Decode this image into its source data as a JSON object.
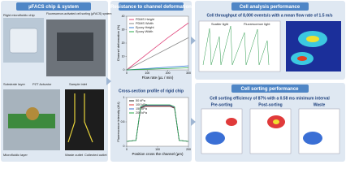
{
  "panels": [
    {
      "title": "µFACS chip & system",
      "labels": [
        "Rigid microfluidic chip",
        "Fluorescence-activated cell sorting (µFACS) system",
        "Substrate layer",
        "PZT Actuator",
        "Sample inlet",
        "Microfluidic layer",
        "Waste outlet",
        "Collected outlet"
      ]
    },
    {
      "title": "Resistance to channel deformation",
      "subtitle": "Cross-section profile of rigid chip"
    },
    {
      "title": "Cell analysis performance",
      "subtitle": "Cell throughput of 8,000 events/s with a mean flow rate of 1.5 m/s",
      "labels": [
        "Scatter light",
        "Fluorescence light"
      ]
    },
    {
      "title": "Cell sorting performance",
      "subtitle": "Cell sorting efficiency of 87% with a 0.58 ms minimum interval",
      "labels": [
        "Pre-sorting",
        "Post-sorting",
        "Waste"
      ]
    }
  ],
  "chart_data": [
    {
      "type": "line",
      "x_label": "Flow rate (µL / min)",
      "y_label": "Channel deformation (%)",
      "x": [
        0,
        100,
        200,
        300
      ],
      "xlim": [
        0,
        300
      ],
      "xticks": [
        0,
        100,
        200,
        300
      ],
      "ylim": [
        0,
        40
      ],
      "yticks": [
        0,
        10,
        20,
        30,
        40
      ],
      "series": [
        {
          "name": "PDMS Height",
          "color": "#e0457b",
          "values": [
            0,
            12,
            24,
            35
          ]
        },
        {
          "name": "PDMS Width",
          "color": "#8a8a8a",
          "values": [
            0,
            8,
            16,
            24
          ]
        },
        {
          "name": "Epoxy Height",
          "color": "#3a7fd5",
          "values": [
            0,
            1,
            2,
            3
          ]
        },
        {
          "name": "Epoxy Width",
          "color": "#2aa84a",
          "values": [
            0,
            0.5,
            1,
            1.5
          ]
        }
      ]
    },
    {
      "type": "line",
      "x_label": "Position cross the channel (µm)",
      "y_label": "Fluorescence intensity (AU)",
      "x": [
        0,
        30,
        45,
        60,
        140,
        155,
        170,
        200
      ],
      "xlim": [
        0,
        200
      ],
      "xticks": [
        0,
        100,
        200
      ],
      "ylim": [
        0,
        1
      ],
      "yticks": [
        0,
        0.5,
        1
      ],
      "series": [
        {
          "name": "50 kPa",
          "color": "#222222",
          "values": [
            0.1,
            0.12,
            0.78,
            0.82,
            0.82,
            0.78,
            0.12,
            0.1
          ]
        },
        {
          "name": "100 kPa",
          "color": "#e03a3a",
          "values": [
            0.1,
            0.12,
            0.79,
            0.83,
            0.83,
            0.79,
            0.12,
            0.1
          ]
        },
        {
          "name": "150 kPa",
          "color": "#3a6fd5",
          "values": [
            0.1,
            0.12,
            0.8,
            0.84,
            0.84,
            0.8,
            0.12,
            0.1
          ]
        },
        {
          "name": "200 kPa",
          "color": "#2aa84a",
          "values": [
            0.1,
            0.12,
            0.81,
            0.85,
            0.85,
            0.81,
            0.12,
            0.1
          ]
        }
      ]
    }
  ]
}
